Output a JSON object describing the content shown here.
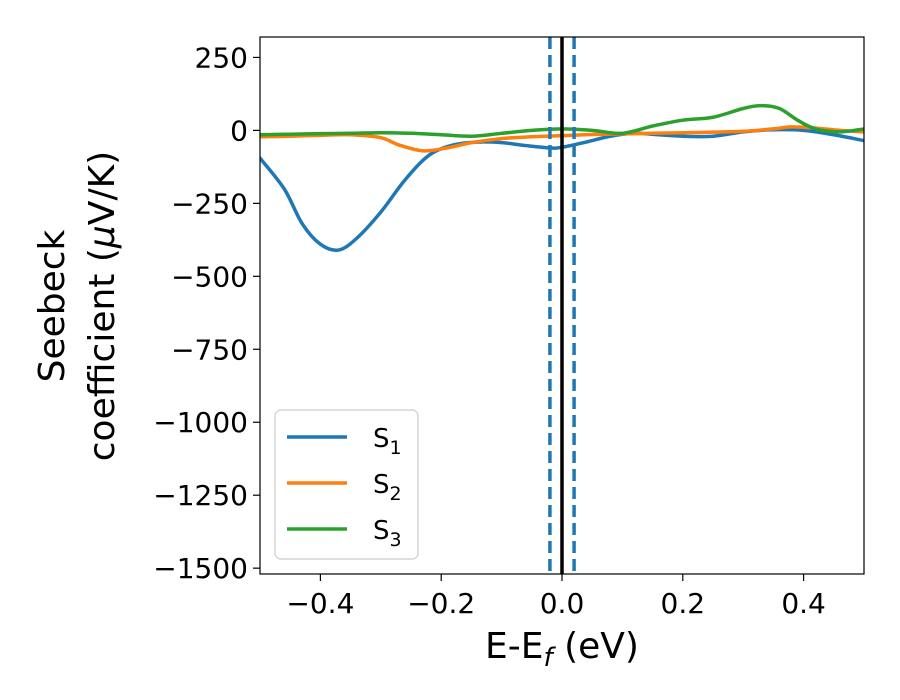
{
  "chart_data": {
    "type": "line",
    "xlabel": "E-E",
    "xlabel_sub": "f",
    "xlabel_unit": " (eV)",
    "ylabel_line1": "Seebeck",
    "ylabel_line2": "coefficient  (",
    "ylabel_mu": "μ",
    "ylabel_unit": "V/K)",
    "xlim": [
      -0.5,
      0.5
    ],
    "ylim": [
      -1520,
      320
    ],
    "x_ticks": [
      -0.4,
      -0.2,
      0.0,
      0.2,
      0.4
    ],
    "x_tick_labels": [
      "−0.4",
      "−0.2",
      "0.0",
      "0.2",
      "0.4"
    ],
    "y_ticks": [
      250,
      0,
      -250,
      -500,
      -750,
      -1000,
      -1250,
      -1500
    ],
    "y_tick_labels": [
      "250",
      "0",
      "−250",
      "−500",
      "−750",
      "−1000",
      "−1250",
      "−1500"
    ],
    "grid": false,
    "legend_position": "lower-left",
    "vertical_lines": [
      {
        "x": -0.02,
        "style": "dashed",
        "color": "#1f77b4"
      },
      {
        "x": 0.02,
        "style": "dashed",
        "color": "#1f77b4"
      },
      {
        "x": 0.0,
        "style": "solid",
        "color": "#000000"
      }
    ],
    "series": [
      {
        "name": "S",
        "sub": "1",
        "color": "#1f77b4",
        "x": [
          -0.5,
          -0.46,
          -0.43,
          -0.4,
          -0.37,
          -0.34,
          -0.3,
          -0.26,
          -0.22,
          -0.18,
          -0.14,
          -0.1,
          -0.06,
          -0.02,
          0.0,
          0.04,
          0.08,
          0.12,
          0.16,
          0.2,
          0.25,
          0.3,
          0.35,
          0.4,
          0.45,
          0.5
        ],
        "y": [
          -95,
          -200,
          -320,
          -390,
          -410,
          -370,
          -280,
          -170,
          -85,
          -50,
          -40,
          -42,
          -52,
          -60,
          -58,
          -40,
          -20,
          -10,
          -15,
          -20,
          -20,
          -5,
          2,
          0,
          -15,
          -35
        ]
      },
      {
        "name": "S",
        "sub": "2",
        "color": "#ff7f0e",
        "x": [
          -0.5,
          -0.45,
          -0.4,
          -0.35,
          -0.3,
          -0.27,
          -0.23,
          -0.19,
          -0.15,
          -0.1,
          -0.05,
          0.0,
          0.05,
          0.1,
          0.15,
          0.2,
          0.25,
          0.3,
          0.35,
          0.38,
          0.42,
          0.46,
          0.5
        ],
        "y": [
          -22,
          -20,
          -17,
          -15,
          -25,
          -50,
          -70,
          -60,
          -42,
          -28,
          -22,
          -18,
          -14,
          -12,
          -10,
          -8,
          -6,
          -3,
          5,
          12,
          8,
          0,
          -5
        ]
      },
      {
        "name": "S",
        "sub": "3",
        "color": "#2ca02c",
        "x": [
          -0.5,
          -0.45,
          -0.4,
          -0.35,
          -0.3,
          -0.25,
          -0.2,
          -0.15,
          -0.1,
          -0.05,
          0.0,
          0.05,
          0.1,
          0.15,
          0.2,
          0.25,
          0.3,
          0.33,
          0.36,
          0.39,
          0.42,
          0.46,
          0.5
        ],
        "y": [
          -15,
          -13,
          -11,
          -10,
          -8,
          -10,
          -15,
          -20,
          -10,
          0,
          5,
          0,
          -10,
          15,
          35,
          45,
          75,
          85,
          75,
          35,
          5,
          -5,
          5
        ]
      }
    ]
  }
}
